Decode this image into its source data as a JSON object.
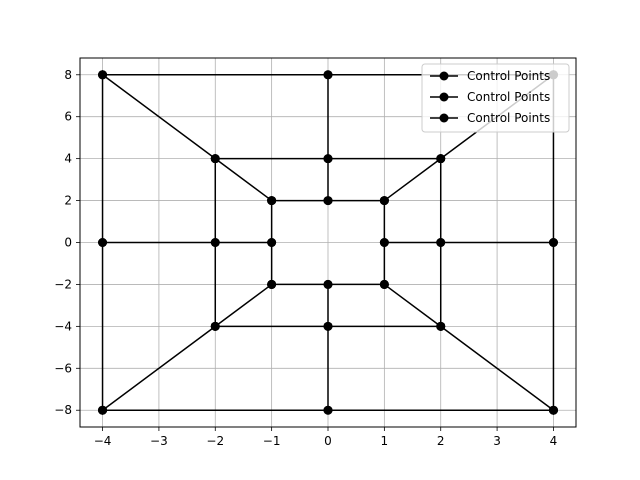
{
  "chart_data": {
    "type": "line",
    "title": "",
    "xlabel": "",
    "ylabel": "",
    "xlim": [
      -4.4,
      4.4
    ],
    "ylim": [
      -8.8,
      8.8
    ],
    "xticks": [
      -4,
      -3,
      -2,
      -1,
      0,
      1,
      2,
      3,
      4
    ],
    "yticks": [
      -8,
      -6,
      -4,
      -2,
      0,
      2,
      4,
      6,
      8
    ],
    "xtick_labels": [
      "−4",
      "−3",
      "−2",
      "−1",
      "0",
      "1",
      "2",
      "3",
      "4"
    ],
    "ytick_labels": [
      "−8",
      "−6",
      "−4",
      "−2",
      "0",
      "2",
      "4",
      "6",
      "8"
    ],
    "grid": true,
    "legend_position": "top-right",
    "legend": [
      "Control Points",
      "Control Points",
      "Control Points"
    ],
    "series": [
      {
        "name": "Control Points",
        "segments": [
          [
            [
              -4,
              8
            ],
            [
              0,
              8
            ],
            [
              4,
              8
            ]
          ],
          [
            [
              -2,
              4
            ],
            [
              0,
              4
            ],
            [
              2,
              4
            ]
          ],
          [
            [
              -1,
              2
            ],
            [
              0,
              2
            ],
            [
              1,
              2
            ]
          ],
          [
            [
              -4,
              0
            ],
            [
              -2,
              0
            ],
            [
              -1,
              0
            ]
          ],
          [
            [
              1,
              0
            ],
            [
              2,
              0
            ],
            [
              4,
              0
            ]
          ],
          [
            [
              -1,
              -2
            ],
            [
              0,
              -2
            ],
            [
              1,
              -2
            ]
          ],
          [
            [
              -2,
              -4
            ],
            [
              0,
              -4
            ],
            [
              2,
              -4
            ]
          ],
          [
            [
              -4,
              -8
            ],
            [
              0,
              -8
            ],
            [
              4,
              -8
            ]
          ]
        ]
      },
      {
        "name": "Control Points",
        "segments": [
          [
            [
              -4,
              -8
            ],
            [
              -4,
              0
            ],
            [
              -4,
              8
            ]
          ],
          [
            [
              -2,
              -4
            ],
            [
              -2,
              0
            ],
            [
              -2,
              4
            ]
          ],
          [
            [
              -1,
              -2
            ],
            [
              -1,
              0
            ],
            [
              -1,
              2
            ]
          ],
          [
            [
              0,
              8
            ],
            [
              0,
              4
            ],
            [
              0,
              2
            ]
          ],
          [
            [
              0,
              -2
            ],
            [
              0,
              -4
            ],
            [
              0,
              -8
            ]
          ],
          [
            [
              1,
              -2
            ],
            [
              1,
              0
            ],
            [
              1,
              2
            ]
          ],
          [
            [
              2,
              -4
            ],
            [
              2,
              0
            ],
            [
              2,
              4
            ]
          ],
          [
            [
              4,
              -8
            ],
            [
              4,
              0
            ],
            [
              4,
              8
            ]
          ]
        ]
      },
      {
        "name": "Control Points",
        "segments": [
          [
            [
              -4,
              8
            ],
            [
              -2,
              4
            ],
            [
              -1,
              2
            ]
          ],
          [
            [
              4,
              8
            ],
            [
              2,
              4
            ],
            [
              1,
              2
            ]
          ],
          [
            [
              -4,
              -8
            ],
            [
              -2,
              -4
            ],
            [
              -1,
              -2
            ]
          ],
          [
            [
              4,
              -8
            ],
            [
              2,
              -4
            ],
            [
              1,
              -2
            ]
          ]
        ]
      }
    ],
    "colors": {
      "series": "#000000",
      "grid": "#b0b0b0",
      "axis": "#000000"
    }
  }
}
